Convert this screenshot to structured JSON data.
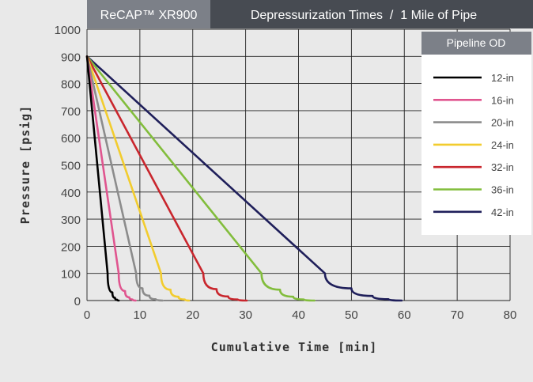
{
  "header": {
    "product": "ReCAP™ XR900",
    "title": "Depressurization Times  /  1 Mile of Pipe"
  },
  "legend": {
    "title": "Pipeline OD",
    "placement": "top-right"
  },
  "colors": {
    "header_left_bg": "#7c8088",
    "header_right_bg": "#474b52",
    "legend_title_bg": "#7c8088",
    "page_bg": "#e9e9e9",
    "grid": "#222222"
  },
  "chart_data": {
    "type": "line",
    "title": "Depressurization Times  /  1 Mile of Pipe",
    "xlabel": "Cumulative Time [min]",
    "ylabel": "Pressure [psig]",
    "xlim": [
      0,
      80
    ],
    "ylim": [
      0,
      1000
    ],
    "xticks": [
      0,
      10,
      20,
      30,
      40,
      50,
      60,
      70,
      80
    ],
    "yticks": [
      0,
      100,
      200,
      300,
      400,
      500,
      600,
      700,
      800,
      900,
      1000
    ],
    "grid": true,
    "series": [
      {
        "name": "12-in",
        "color": "#000000",
        "x": [
          0,
          3.9,
          4.8,
          5.3,
          5.7,
          6.0
        ],
        "y": [
          900,
          100,
          30,
          10,
          3,
          0
        ]
      },
      {
        "name": "16-in",
        "color": "#e0558f",
        "x": [
          0,
          6.0,
          7.2,
          8.0,
          8.6,
          9.2
        ],
        "y": [
          900,
          100,
          35,
          12,
          4,
          0
        ]
      },
      {
        "name": "20-in",
        "color": "#8c8c8c",
        "x": [
          0,
          9.3,
          10.5,
          11.8,
          13.0,
          14.3
        ],
        "y": [
          900,
          100,
          45,
          18,
          5,
          0
        ]
      },
      {
        "name": "24-in",
        "color": "#f2cc2e",
        "x": [
          0,
          14.0,
          15.8,
          17.3,
          18.5,
          19.3
        ],
        "y": [
          900,
          100,
          40,
          14,
          4,
          0
        ]
      },
      {
        "name": "32-in",
        "color": "#c9262d",
        "x": [
          0,
          22.0,
          24.5,
          26.7,
          28.5,
          30.2
        ],
        "y": [
          900,
          100,
          42,
          15,
          4,
          0
        ]
      },
      {
        "name": "36-in",
        "color": "#82bd3c",
        "x": [
          0,
          33.0,
          36.5,
          39.0,
          41.0,
          43.0
        ],
        "y": [
          900,
          100,
          40,
          14,
          4,
          0
        ]
      },
      {
        "name": "42-in",
        "color": "#1f1f5a",
        "x": [
          0,
          45.0,
          50.0,
          54.0,
          57.0,
          59.5
        ],
        "y": [
          900,
          100,
          45,
          17,
          5,
          0
        ]
      }
    ]
  }
}
